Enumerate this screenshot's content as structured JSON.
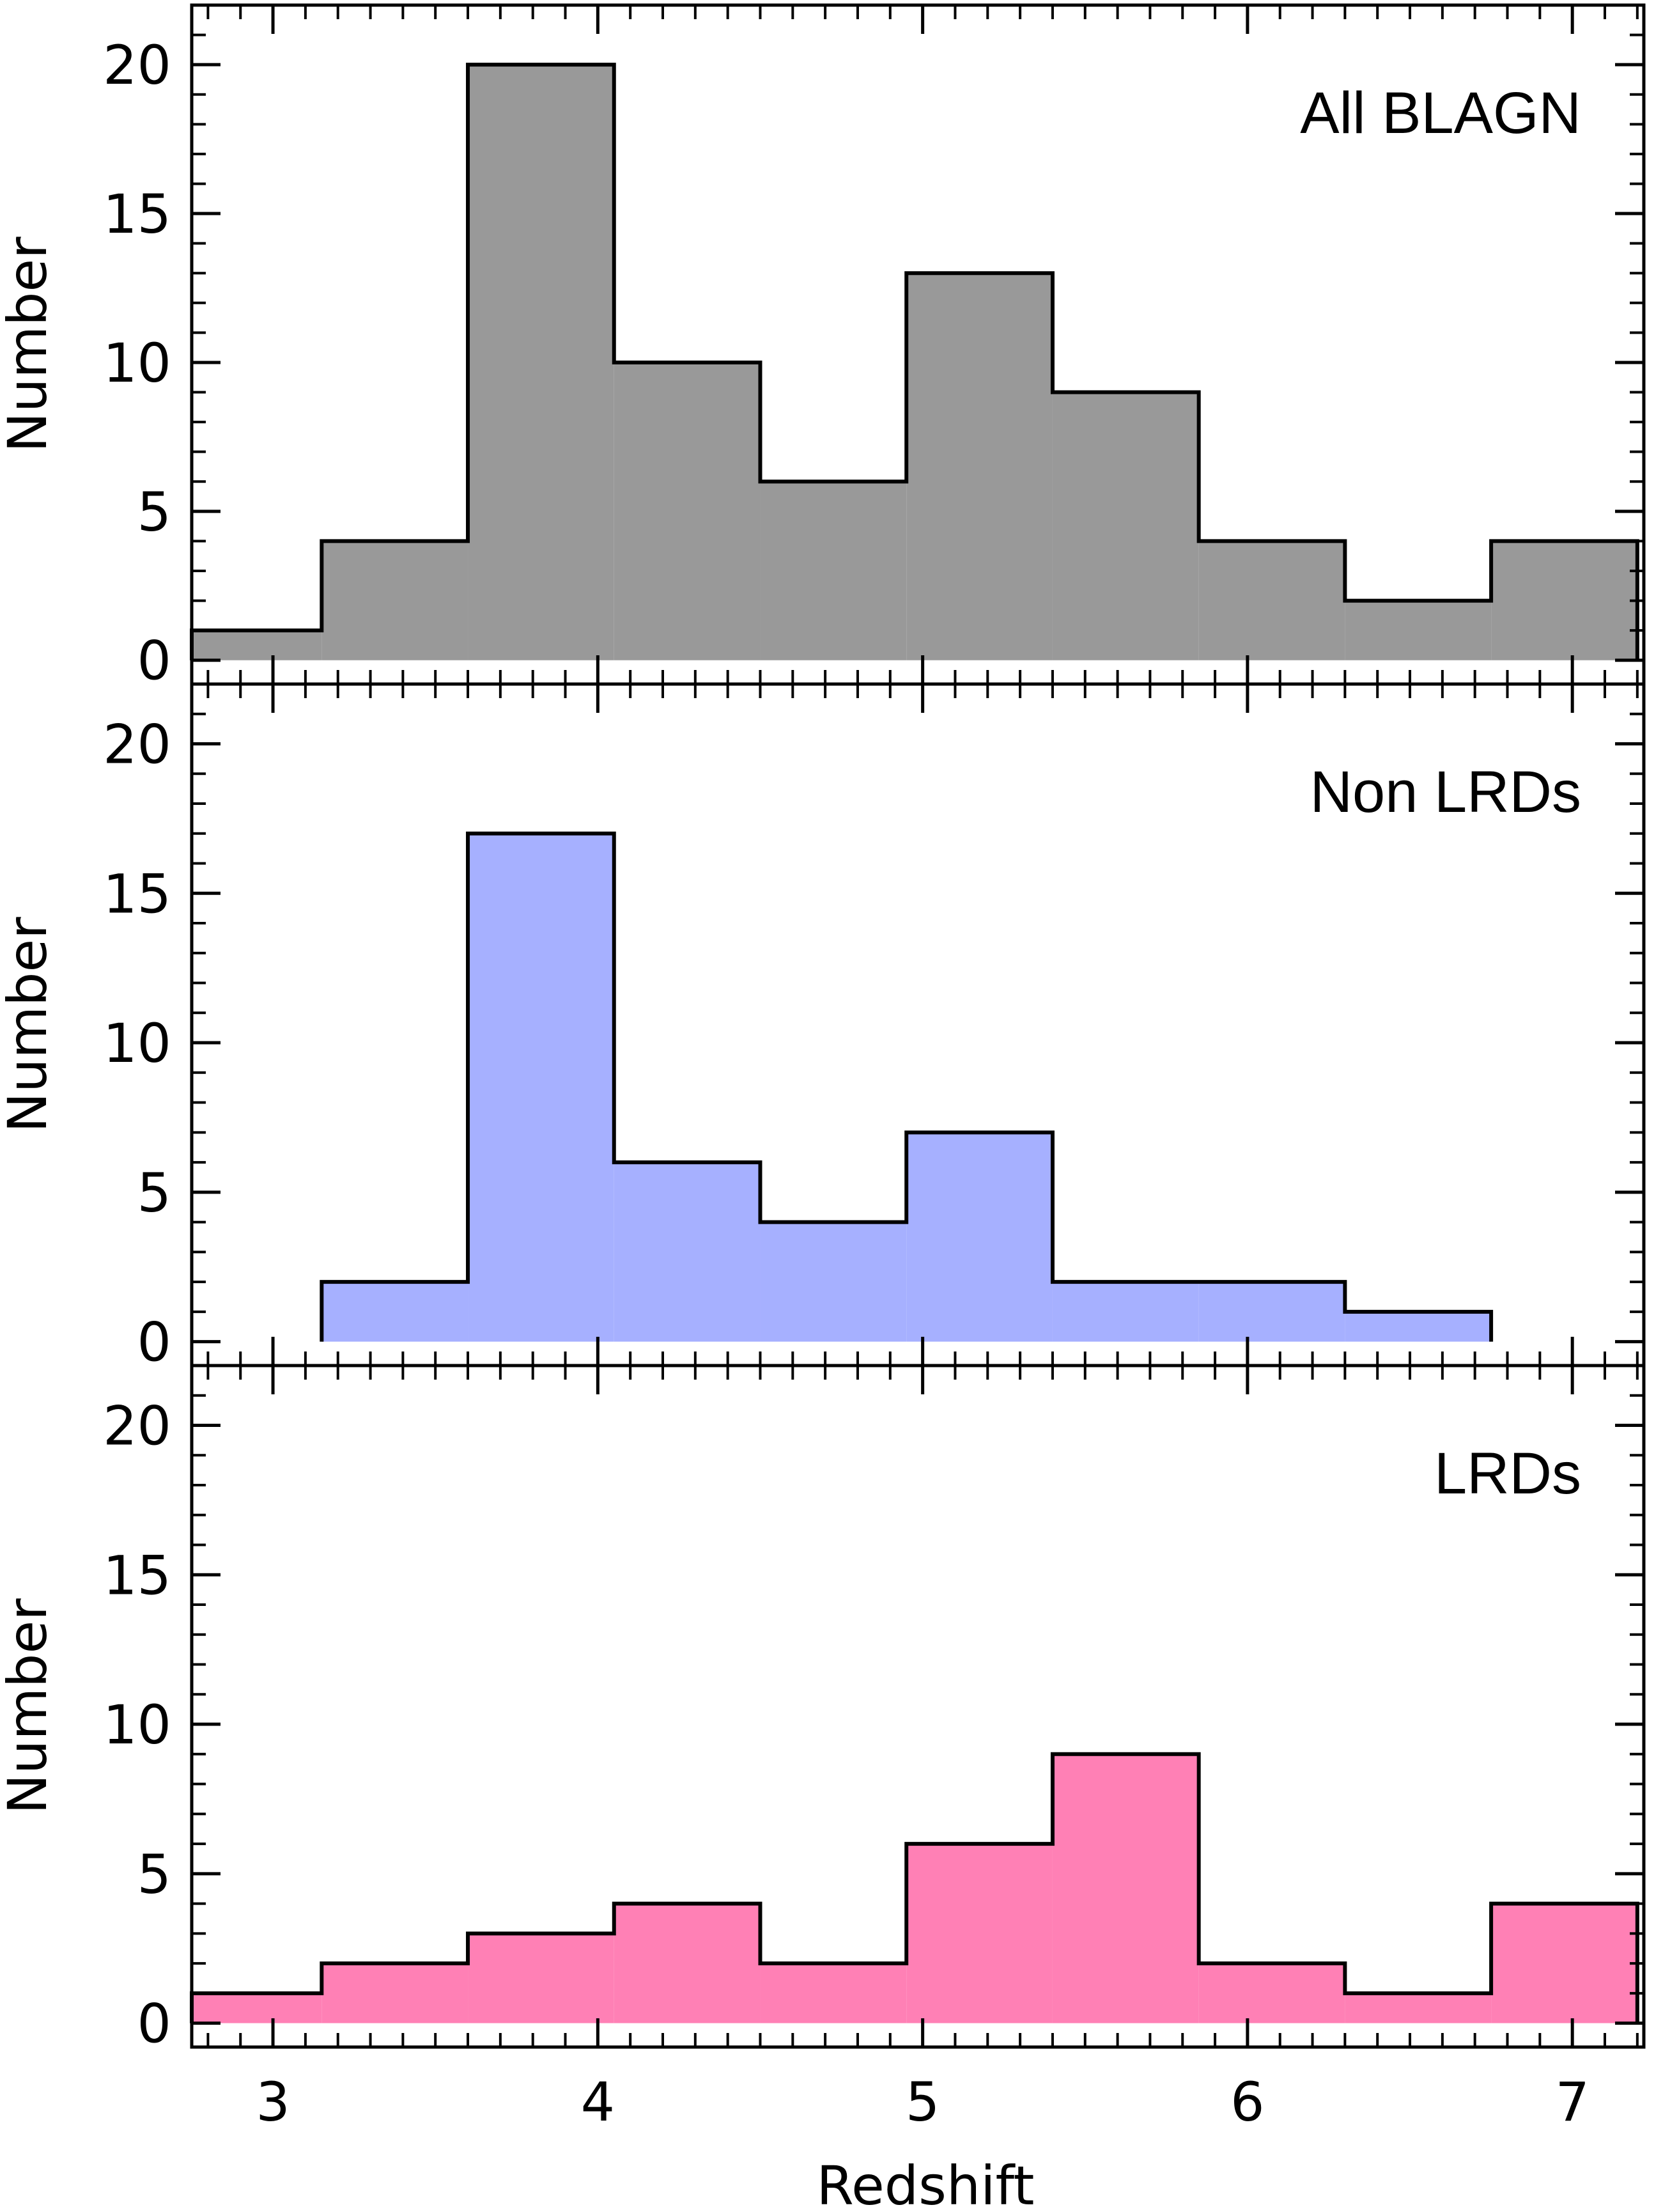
{
  "chart_data": [
    {
      "type": "histogram",
      "label": "All BLAGN",
      "fill": "#999999",
      "ylabel": "Number",
      "ylim": [
        -0.8,
        22
      ],
      "xlim": [
        2.75,
        7.22
      ],
      "yticks": [
        "0",
        "5",
        "10",
        "15",
        "20"
      ],
      "bin_edges": [
        2.75,
        3.15,
        3.6,
        4.05,
        4.5,
        4.95,
        5.4,
        5.85,
        6.3,
        6.75,
        7.2
      ],
      "values": [
        1,
        4,
        20,
        10,
        6,
        13,
        9,
        4,
        2,
        4
      ]
    },
    {
      "type": "histogram",
      "label": "Non LRDs",
      "fill": "#a6b0ff",
      "ylabel": "Number",
      "ylim": [
        -0.8,
        22
      ],
      "xlim": [
        2.75,
        7.22
      ],
      "yticks": [
        "0",
        "5",
        "10",
        "15",
        "20"
      ],
      "bin_edges": [
        3.15,
        3.6,
        4.05,
        4.5,
        4.95,
        5.4,
        5.85,
        6.3,
        6.75
      ],
      "values": [
        2,
        17,
        6,
        4,
        7,
        2,
        2,
        1
      ]
    },
    {
      "type": "histogram",
      "label": "LRDs",
      "fill": "#ff80b5",
      "ylabel": "Number",
      "ylim": [
        -0.8,
        22
      ],
      "xlim": [
        2.75,
        7.22
      ],
      "yticks": [
        "0",
        "5",
        "10",
        "15",
        "20"
      ],
      "bin_edges": [
        2.75,
        3.15,
        3.6,
        4.05,
        4.5,
        4.95,
        5.4,
        5.85,
        6.3,
        6.75,
        7.2
      ],
      "values": [
        1,
        2,
        3,
        4,
        2,
        6,
        9,
        2,
        1,
        4
      ],
      "xlabel": "Redshift",
      "xticks": [
        "3",
        "4",
        "5",
        "6",
        "7"
      ]
    }
  ]
}
